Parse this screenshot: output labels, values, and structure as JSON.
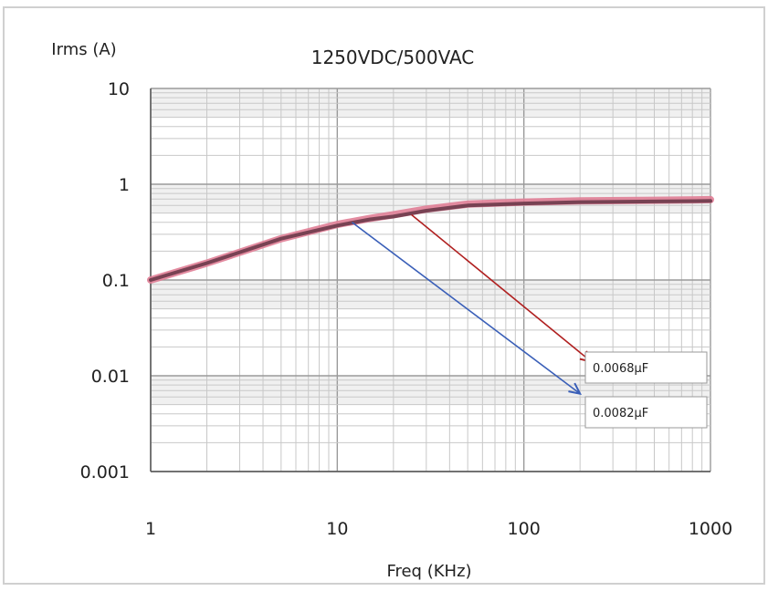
{
  "colors": {
    "background": "#ffffff",
    "frame": "#d0d0d0",
    "grid_major": "#9a9a9a",
    "grid_minor": "#c8c8c8",
    "band": "#e4e4e4",
    "curve_pink": "#e07e96",
    "curve_dark": "#6b3a4a",
    "arrow_red": "#b02020",
    "arrow_blue": "#3a5fb8"
  },
  "chart_data": {
    "type": "line",
    "title": "1250VDC/500VAC",
    "xlabel": "Freq (KHz)",
    "ylabel": "Irms (A)",
    "xscale": "log",
    "yscale": "log",
    "xlim": [
      1,
      1000
    ],
    "ylim": [
      0.001,
      10
    ],
    "xticks": [
      "1",
      "10",
      "100",
      "1000"
    ],
    "yticks": [
      "10",
      "1",
      "0.1",
      "0.01",
      "0.001"
    ],
    "grid": true,
    "series": [
      {
        "x": [
          1,
          2,
          5,
          10,
          15,
          20,
          30,
          50,
          100,
          200,
          500,
          1000
        ],
        "y": [
          0.1,
          0.15,
          0.27,
          0.38,
          0.44,
          0.48,
          0.55,
          0.62,
          0.65,
          0.67,
          0.68,
          0.69
        ]
      },
      {
        "x": [
          1,
          2,
          5,
          10,
          15,
          20,
          30,
          50,
          100,
          200,
          500,
          1000
        ],
        "y": [
          0.1,
          0.15,
          0.27,
          0.37,
          0.43,
          0.46,
          0.53,
          0.6,
          0.63,
          0.65,
          0.66,
          0.67
        ]
      }
    ],
    "annotations": [
      {
        "text": "0.0068μF",
        "from": [
          25,
          0.48
        ],
        "to": [
          230,
          0.014
        ],
        "color": "arrow_red"
      },
      {
        "text": "0.0082μF",
        "from": [
          12,
          0.4
        ],
        "to": [
          200,
          0.0065
        ],
        "color": "arrow_blue"
      }
    ]
  }
}
